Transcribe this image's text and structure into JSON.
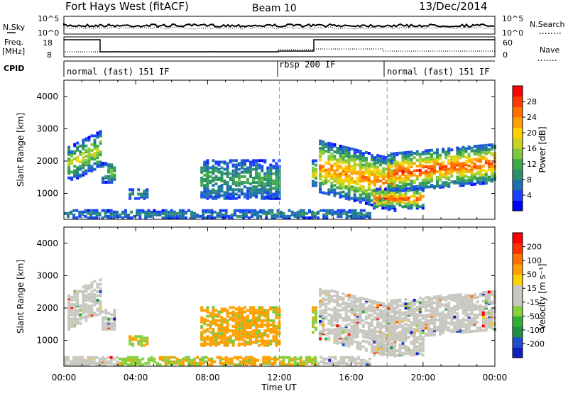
{
  "header": {
    "station": "Fort Hays West (fitACF)",
    "beam": "Beam 10",
    "date": "13/Dec/2014"
  },
  "noise_panel": {
    "left_label": "N.Sky",
    "right_label": "N.Search",
    "left_ticks": [
      "10^5",
      "10^0"
    ],
    "right_ticks": [
      "10^5",
      "10^0"
    ]
  },
  "freq_panel": {
    "left_label_line1": "Freq.",
    "left_label_line2": "[MHz]",
    "right_label": "Nave",
    "left_ticks": [
      "18",
      "8"
    ],
    "right_ticks": [
      "60",
      "0"
    ]
  },
  "cpid_panel": {
    "label": "CPID",
    "segments": [
      {
        "text": "normal (fast) 151 IF",
        "start_hour": 0
      },
      {
        "text": "rbsp 200 IF",
        "start_hour": 12
      },
      {
        "text": "normal (fast) 151 IF",
        "start_hour": 18
      }
    ]
  },
  "chart_data": [
    {
      "type": "heatmap",
      "name": "power",
      "ylabel": "Slant Range [km]",
      "ylim": [
        200,
        4500
      ],
      "xlim_hours": [
        0,
        24
      ],
      "y_ticks": [
        1000,
        2000,
        3000,
        4000
      ],
      "colorbar": {
        "label": "Power [dB]",
        "ticks": [
          "28",
          "24",
          "20",
          "16",
          "12",
          "8",
          "4"
        ],
        "colors": [
          "#0000ff",
          "#1a40ff",
          "#1e6fb0",
          "#2a8f6a",
          "#3fa84a",
          "#7ec83e",
          "#c8d41e",
          "#ffd200",
          "#ffa000",
          "#ff7000",
          "#ff3a00",
          "#ff0000"
        ]
      }
    },
    {
      "type": "heatmap",
      "name": "velocity",
      "ylabel": "Slant Range [km]",
      "ylim": [
        200,
        4500
      ],
      "xlim_hours": [
        0,
        24
      ],
      "y_ticks": [
        1000,
        2000,
        3000,
        4000
      ],
      "colorbar": {
        "label": "Velocity [m s⁻¹]",
        "ticks": [
          "200",
          "100",
          "50",
          "15",
          "-15",
          "-50",
          "-100",
          "-200"
        ],
        "colors": [
          "#1020c0",
          "#1e50d0",
          "#1f8f40",
          "#2fb030",
          "#88d040",
          "#c8c8c0",
          "#c8c8c0",
          "#ffd000",
          "#ffa000",
          "#ff7000",
          "#ff3000",
          "#ff0000"
        ]
      }
    }
  ],
  "x_axis": {
    "label": "Time UT",
    "ticks": [
      "00:00",
      "04:00",
      "08:00",
      "12:00",
      "16:00",
      "20:00",
      "00:00"
    ]
  }
}
